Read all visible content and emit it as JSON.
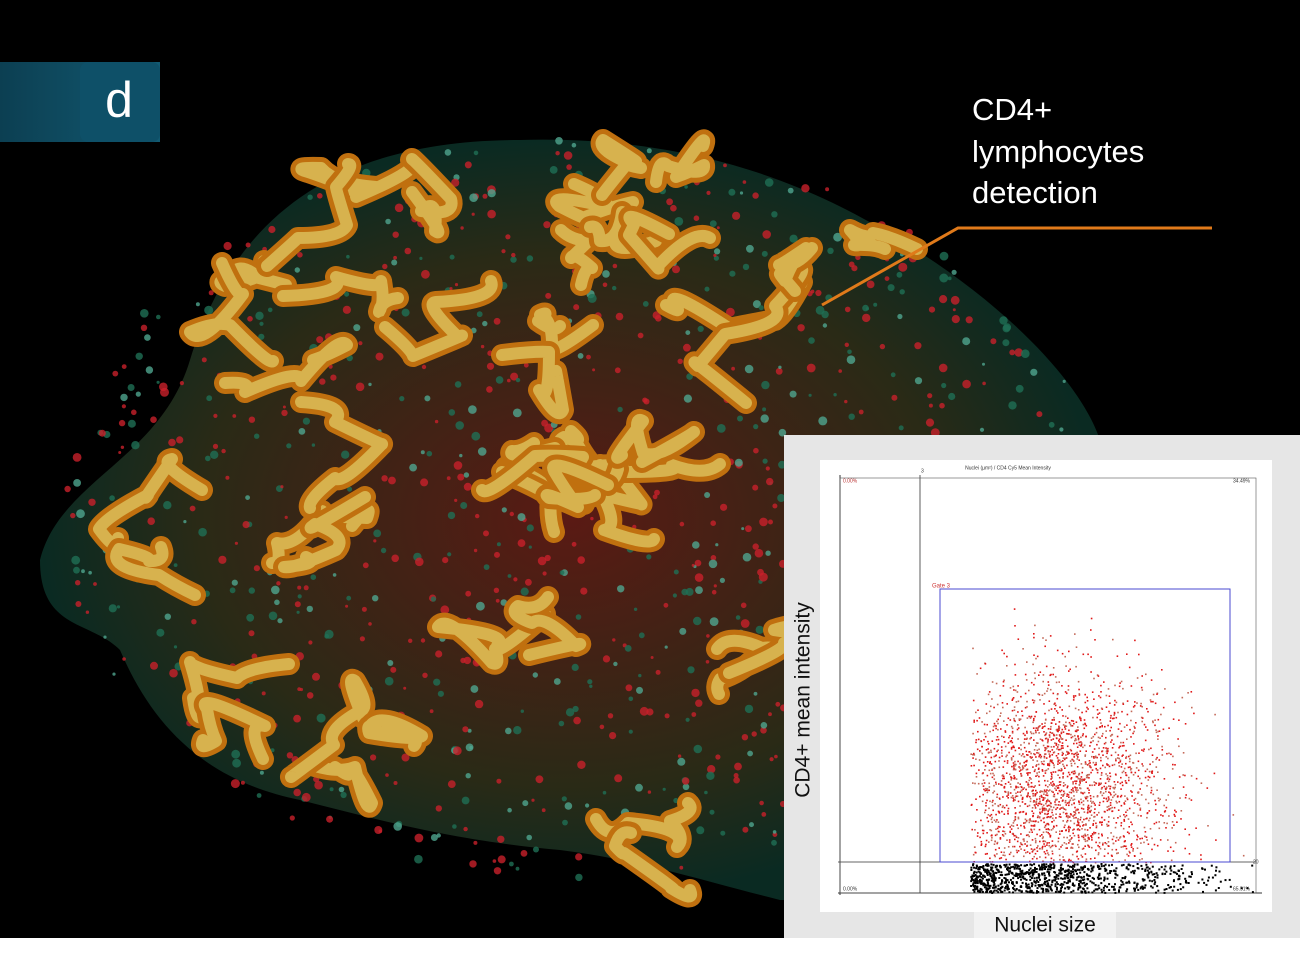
{
  "panel_label": "d",
  "annotation": {
    "lines": [
      "CD4+",
      "lymphocytes",
      "detection"
    ]
  },
  "inset": {
    "title": "Nuclei (µm²) / CD4 Cy5 Mean Intensity",
    "y_label": "CD4+ mean intensity",
    "x_label": "Nuclei size",
    "gate": "Gate 3",
    "quadrants": {
      "top_left": "0.00%",
      "top_right": "34.49%",
      "bottom_left": "0.00%",
      "bottom_right": "65.51%"
    },
    "threshold_x": "3",
    "threshold_y": "20"
  }
}
